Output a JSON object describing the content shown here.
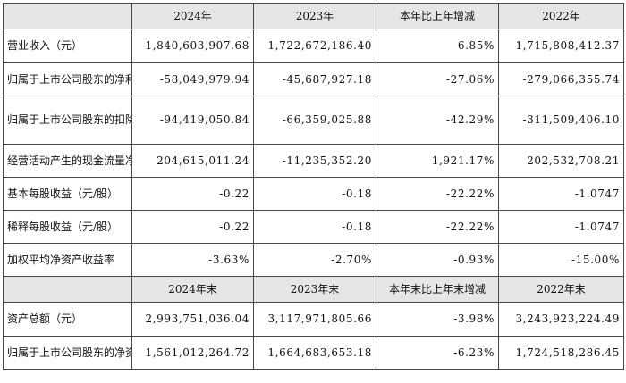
{
  "header_main": {
    "blank": "",
    "c1": "2024年",
    "c2": "2023年",
    "c3": "本年比上年增减",
    "c4": "2022年"
  },
  "rows_main": [
    {
      "label": "营业收入（元）",
      "v2024": "1,840,603,907.68",
      "v2023": "1,722,672,186.40",
      "change": "6.85%",
      "v2022": "1,715,808,412.37"
    },
    {
      "label": "归属于上市公司股东的净利润（元）",
      "v2024": "-58,049,979.94",
      "v2023": "-45,687,927.18",
      "change": "-27.06%",
      "v2022": "-279,066,355.74"
    },
    {
      "label": "归属于上市公司股东的扣除非经常性损益的净利润（元）",
      "v2024": "-94,419,050.84",
      "v2023": "-66,359,025.88",
      "change": "-42.29%",
      "v2022": "-311,509,406.10"
    },
    {
      "label": "经营活动产生的现金流量净额（元）",
      "v2024": "204,615,011.24",
      "v2023": "-11,235,352.20",
      "change": "1,921.17%",
      "v2022": "202,532,708.21"
    },
    {
      "label": "基本每股收益（元/股）",
      "v2024": "-0.22",
      "v2023": "-0.18",
      "change": "-22.22%",
      "v2022": "-1.0747"
    },
    {
      "label": "稀释每股收益（元/股）",
      "v2024": "-0.22",
      "v2023": "-0.18",
      "change": "-22.22%",
      "v2022": "-1.0747"
    },
    {
      "label": "加权平均净资产收益率",
      "v2024": "-3.63%",
      "v2023": "-2.70%",
      "change": "-0.93%",
      "v2022": "-15.00%"
    }
  ],
  "header_end": {
    "blank": "",
    "c1": "2024年末",
    "c2": "2023年末",
    "c3": "本年末比上年末增减",
    "c4": "2022年末"
  },
  "rows_end": [
    {
      "label": "资产总额（元）",
      "v2024": "2,993,751,036.04",
      "v2023": "3,117,971,805.66",
      "change": "-3.98%",
      "v2022": "3,243,923,224.49"
    },
    {
      "label": "归属于上市公司股东的净资产（元）",
      "v2024": "1,561,012,264.72",
      "v2023": "1,664,683,653.18",
      "change": "-6.23%",
      "v2022": "1,724,518,286.45"
    }
  ]
}
